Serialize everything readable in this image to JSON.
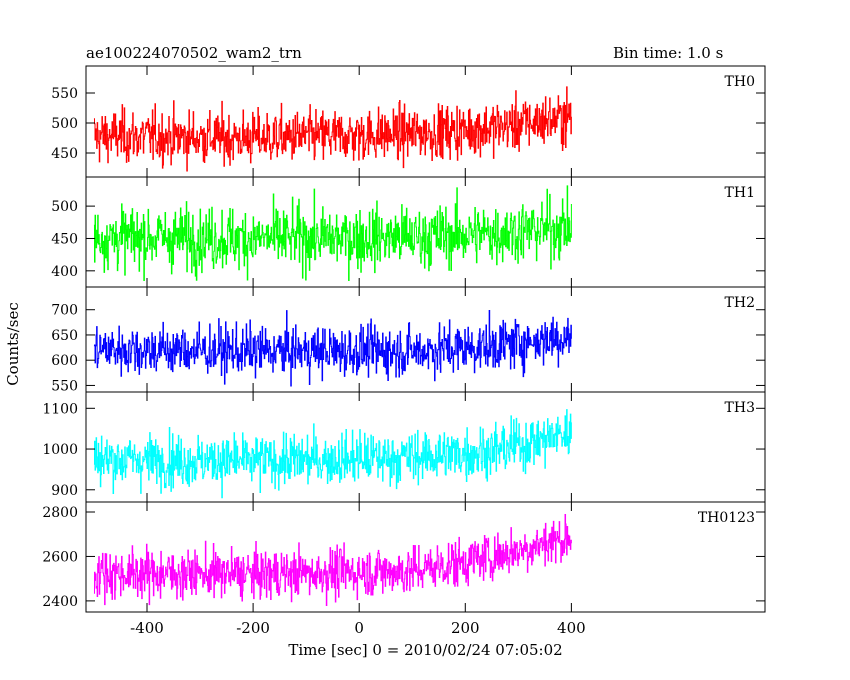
{
  "header": {
    "title": "ae100224070502_wam2_trn",
    "bin_time": "Bin time: 1.0 s"
  },
  "chart_data": {
    "type": "line",
    "xlabel": "Time [sec] 0 = 2010/02/24 07:05:02",
    "ylabel": "Counts/sec",
    "xlim": [
      -515,
      765
    ],
    "x_ticks": [
      -400,
      -200,
      0,
      200,
      400
    ],
    "x_tick_labels": [
      "-400",
      "-200",
      "0",
      "200",
      "400"
    ],
    "x_data_range": [
      -500,
      400
    ],
    "bin_seconds": 1.0,
    "panels": [
      {
        "name": "TH0",
        "color": "#ff0000",
        "ylim": [
          410,
          595
        ],
        "y_ticks": [
          450,
          500,
          550
        ],
        "y_tick_labels": [
          "450",
          "500",
          "550"
        ],
        "trend": [
          [
            -500,
            478
          ],
          [
            -200,
            475
          ],
          [
            100,
            482
          ],
          [
            250,
            492
          ],
          [
            400,
            510
          ]
        ],
        "noise_sd": 22,
        "range_shown": [
          418,
          592
        ]
      },
      {
        "name": "TH1",
        "color": "#00ff00",
        "ylim": [
          375,
          545
        ],
        "y_ticks": [
          400,
          450,
          500
        ],
        "y_tick_labels": [
          "400",
          "450",
          "500"
        ],
        "trend": [
          [
            -500,
            452
          ],
          [
            -200,
            450
          ],
          [
            100,
            452
          ],
          [
            250,
            458
          ],
          [
            400,
            468
          ]
        ],
        "noise_sd": 24,
        "range_shown": [
          385,
          540
        ]
      },
      {
        "name": "TH2",
        "color": "#0000ff",
        "ylim": [
          537,
          745
        ],
        "y_ticks": [
          550,
          600,
          650,
          700
        ],
        "y_tick_labels": [
          "550",
          "600",
          "650",
          "700"
        ],
        "trend": [
          [
            -500,
            622
          ],
          [
            -200,
            618
          ],
          [
            100,
            618
          ],
          [
            250,
            628
          ],
          [
            400,
            648
          ]
        ],
        "noise_sd": 25,
        "range_shown": [
          540,
          740
        ]
      },
      {
        "name": "TH3",
        "color": "#00ffff",
        "ylim": [
          870,
          1140
        ],
        "y_ticks": [
          900,
          1000,
          1100
        ],
        "y_tick_labels": [
          "900",
          "1000",
          "1100"
        ],
        "trend": [
          [
            -500,
            975
          ],
          [
            -200,
            970
          ],
          [
            100,
            980
          ],
          [
            250,
            995
          ],
          [
            400,
            1040
          ]
        ],
        "noise_sd": 32,
        "range_shown": [
          875,
          1135
        ]
      },
      {
        "name": "TH0123",
        "color": "#ff00ff",
        "ylim": [
          2350,
          2845
        ],
        "y_ticks": [
          2400,
          2600,
          2800
        ],
        "y_tick_labels": [
          "2400",
          "2600",
          "2800"
        ],
        "trend": [
          [
            -500,
            2525
          ],
          [
            -200,
            2520
          ],
          [
            100,
            2535
          ],
          [
            250,
            2600
          ],
          [
            400,
            2690
          ]
        ],
        "noise_sd": 55,
        "range_shown": [
          2360,
          2840
        ]
      }
    ],
    "grid": false,
    "legend": "panel labels at top-right of each panel"
  }
}
